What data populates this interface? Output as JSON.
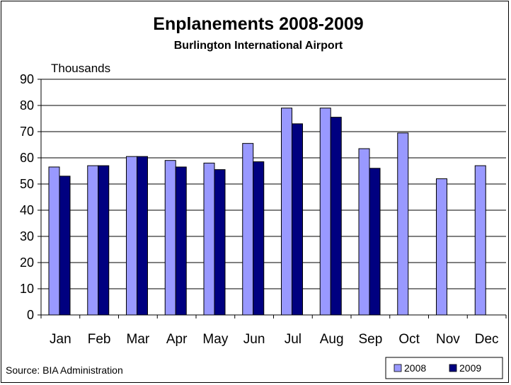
{
  "chart_data": {
    "type": "bar",
    "title": "Enplanements 2008-2009",
    "subtitle": "Burlington International Airport",
    "ylabel": "Thousands",
    "xlabel": "",
    "ylim": [
      0,
      90
    ],
    "yticks": [
      0,
      10,
      20,
      30,
      40,
      50,
      60,
      70,
      80,
      90
    ],
    "grid": true,
    "legend_position": "bottom-right",
    "categories": [
      "Jan",
      "Feb",
      "Mar",
      "Apr",
      "May",
      "Jun",
      "Jul",
      "Aug",
      "Sep",
      "Oct",
      "Nov",
      "Dec"
    ],
    "series": [
      {
        "name": "2008",
        "color": "#9999ff",
        "values": [
          56.5,
          57,
          60.5,
          59,
          58,
          65.5,
          79,
          79,
          63.5,
          69.5,
          52,
          57
        ]
      },
      {
        "name": "2009",
        "color": "#000080",
        "values": [
          53,
          57,
          60.5,
          56.5,
          55.5,
          58.5,
          73,
          75.5,
          56,
          null,
          null,
          null
        ]
      }
    ],
    "source": "Source: BIA Administration"
  }
}
